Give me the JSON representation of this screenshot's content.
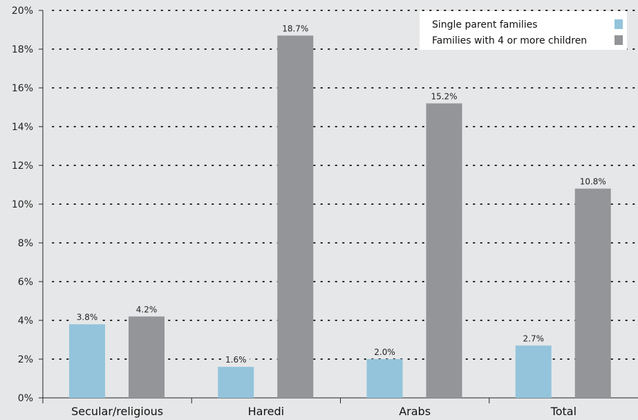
{
  "chart_data": {
    "type": "bar",
    "title": "",
    "xlabel": "",
    "ylabel": "",
    "ylim": [
      0,
      20
    ],
    "y_ticks": [
      0,
      2,
      4,
      6,
      8,
      10,
      12,
      14,
      16,
      18,
      20
    ],
    "y_tick_suffix": "%",
    "grid": "dotted-horizontal",
    "legend_position": "top-right",
    "categories": [
      "Secular/religious",
      "Haredi",
      "Arabs",
      "Total"
    ],
    "series": [
      {
        "name": "Single parent families",
        "color": "#93c4dc",
        "values": [
          3.8,
          1.6,
          2.0,
          2.7
        ],
        "labels": [
          "3.8%",
          "1.6%",
          "2.0%",
          "2.7%"
        ]
      },
      {
        "name": "Families with 4 or more children",
        "color": "#939598",
        "values": [
          4.2,
          18.7,
          15.2,
          10.8
        ],
        "labels": [
          "4.2%",
          "18.7%",
          "15.2%",
          "10.8%"
        ]
      }
    ]
  }
}
